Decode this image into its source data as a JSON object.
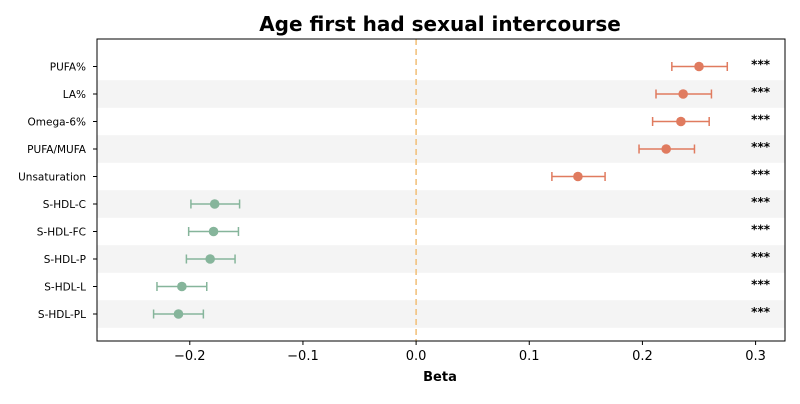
{
  "chart_data": {
    "type": "forest",
    "title": "Age first had sexual intercourse",
    "xlabel": "Beta",
    "xlim": [
      -0.282,
      0.326
    ],
    "xticks": [
      -0.2,
      -0.1,
      0.0,
      0.1,
      0.2,
      0.3
    ],
    "xtick_labels": [
      "−0.2",
      "−0.1",
      "0.0",
      "0.1",
      "0.2",
      "0.3"
    ],
    "reference_line": 0.0,
    "significance_label": "***",
    "colors": {
      "positive": "#E07B5F",
      "negative": "#86B59B",
      "reference": "#F2C27E",
      "band": "#F4F4F4",
      "axis": "#000000"
    },
    "rows": [
      {
        "label": "PUFA%",
        "beta": 0.25,
        "ci_low": 0.226,
        "ci_high": 0.275,
        "sig": "***"
      },
      {
        "label": "LA%",
        "beta": 0.236,
        "ci_low": 0.212,
        "ci_high": 0.261,
        "sig": "***"
      },
      {
        "label": "Omega-6%",
        "beta": 0.234,
        "ci_low": 0.209,
        "ci_high": 0.259,
        "sig": "***"
      },
      {
        "label": "PUFA/MUFA",
        "beta": 0.221,
        "ci_low": 0.197,
        "ci_high": 0.246,
        "sig": "***"
      },
      {
        "label": "Unsaturation",
        "beta": 0.143,
        "ci_low": 0.12,
        "ci_high": 0.167,
        "sig": "***"
      },
      {
        "label": "S-HDL-C",
        "beta": -0.178,
        "ci_low": -0.199,
        "ci_high": -0.156,
        "sig": "***"
      },
      {
        "label": "S-HDL-FC",
        "beta": -0.179,
        "ci_low": -0.201,
        "ci_high": -0.157,
        "sig": "***"
      },
      {
        "label": "S-HDL-P",
        "beta": -0.182,
        "ci_low": -0.203,
        "ci_high": -0.16,
        "sig": "***"
      },
      {
        "label": "S-HDL-L",
        "beta": -0.207,
        "ci_low": -0.229,
        "ci_high": -0.185,
        "sig": "***"
      },
      {
        "label": "S-HDL-PL",
        "beta": -0.21,
        "ci_low": -0.232,
        "ci_high": -0.188,
        "sig": "***"
      }
    ]
  }
}
